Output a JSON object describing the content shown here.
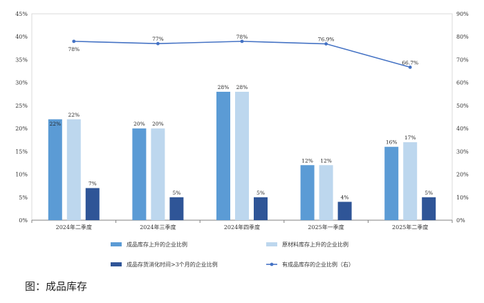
{
  "chart_data": {
    "type": "bar",
    "categories": [
      "2024年二季度",
      "2024年三季度",
      "2024年四季度",
      "2025年一季度",
      "2025年二季度"
    ],
    "series": [
      {
        "name": "成品库存上升的企业比例",
        "values": [
          22,
          20,
          28,
          12,
          16
        ],
        "labels": [
          "22%",
          "20%",
          "28%",
          "12%",
          "16%"
        ],
        "color": "#5b9bd5",
        "axis": "left",
        "kind": "bar"
      },
      {
        "name": "原材料库存上升的企业比例",
        "values": [
          22,
          20,
          28,
          12,
          17
        ],
        "labels": [
          "22%",
          "20%",
          "28%",
          "12%",
          "17%"
        ],
        "color": "#bdd7ee",
        "axis": "left",
        "kind": "bar"
      },
      {
        "name": "成品存货消化时间>3个月的企业比例",
        "values": [
          7,
          5,
          5,
          4,
          5
        ],
        "labels": [
          "7%",
          "5%",
          "5%",
          "4%",
          "5%"
        ],
        "color": "#2f5597",
        "axis": "left",
        "kind": "bar"
      },
      {
        "name": "有成品库存的企业比例（右）",
        "values": [
          78,
          77,
          78,
          76.9,
          66.7
        ],
        "labels": [
          "78%",
          "77%",
          "78%",
          "76.9%",
          "66.7%"
        ],
        "color": "#4472c4",
        "axis": "right",
        "kind": "line"
      }
    ],
    "ylim": [
      0,
      45
    ],
    "ylim_right": [
      0,
      90
    ],
    "yticks": [
      "0%",
      "5%",
      "10%",
      "15%",
      "20%",
      "25%",
      "30%",
      "35%",
      "40%",
      "45%"
    ],
    "yticks_right": [
      "0%",
      "10%",
      "20%",
      "30%",
      "40%",
      "50%",
      "60%",
      "70%",
      "80%",
      "90%"
    ],
    "legend_position": "bottom",
    "grid": false
  },
  "caption": "图：成品库存"
}
